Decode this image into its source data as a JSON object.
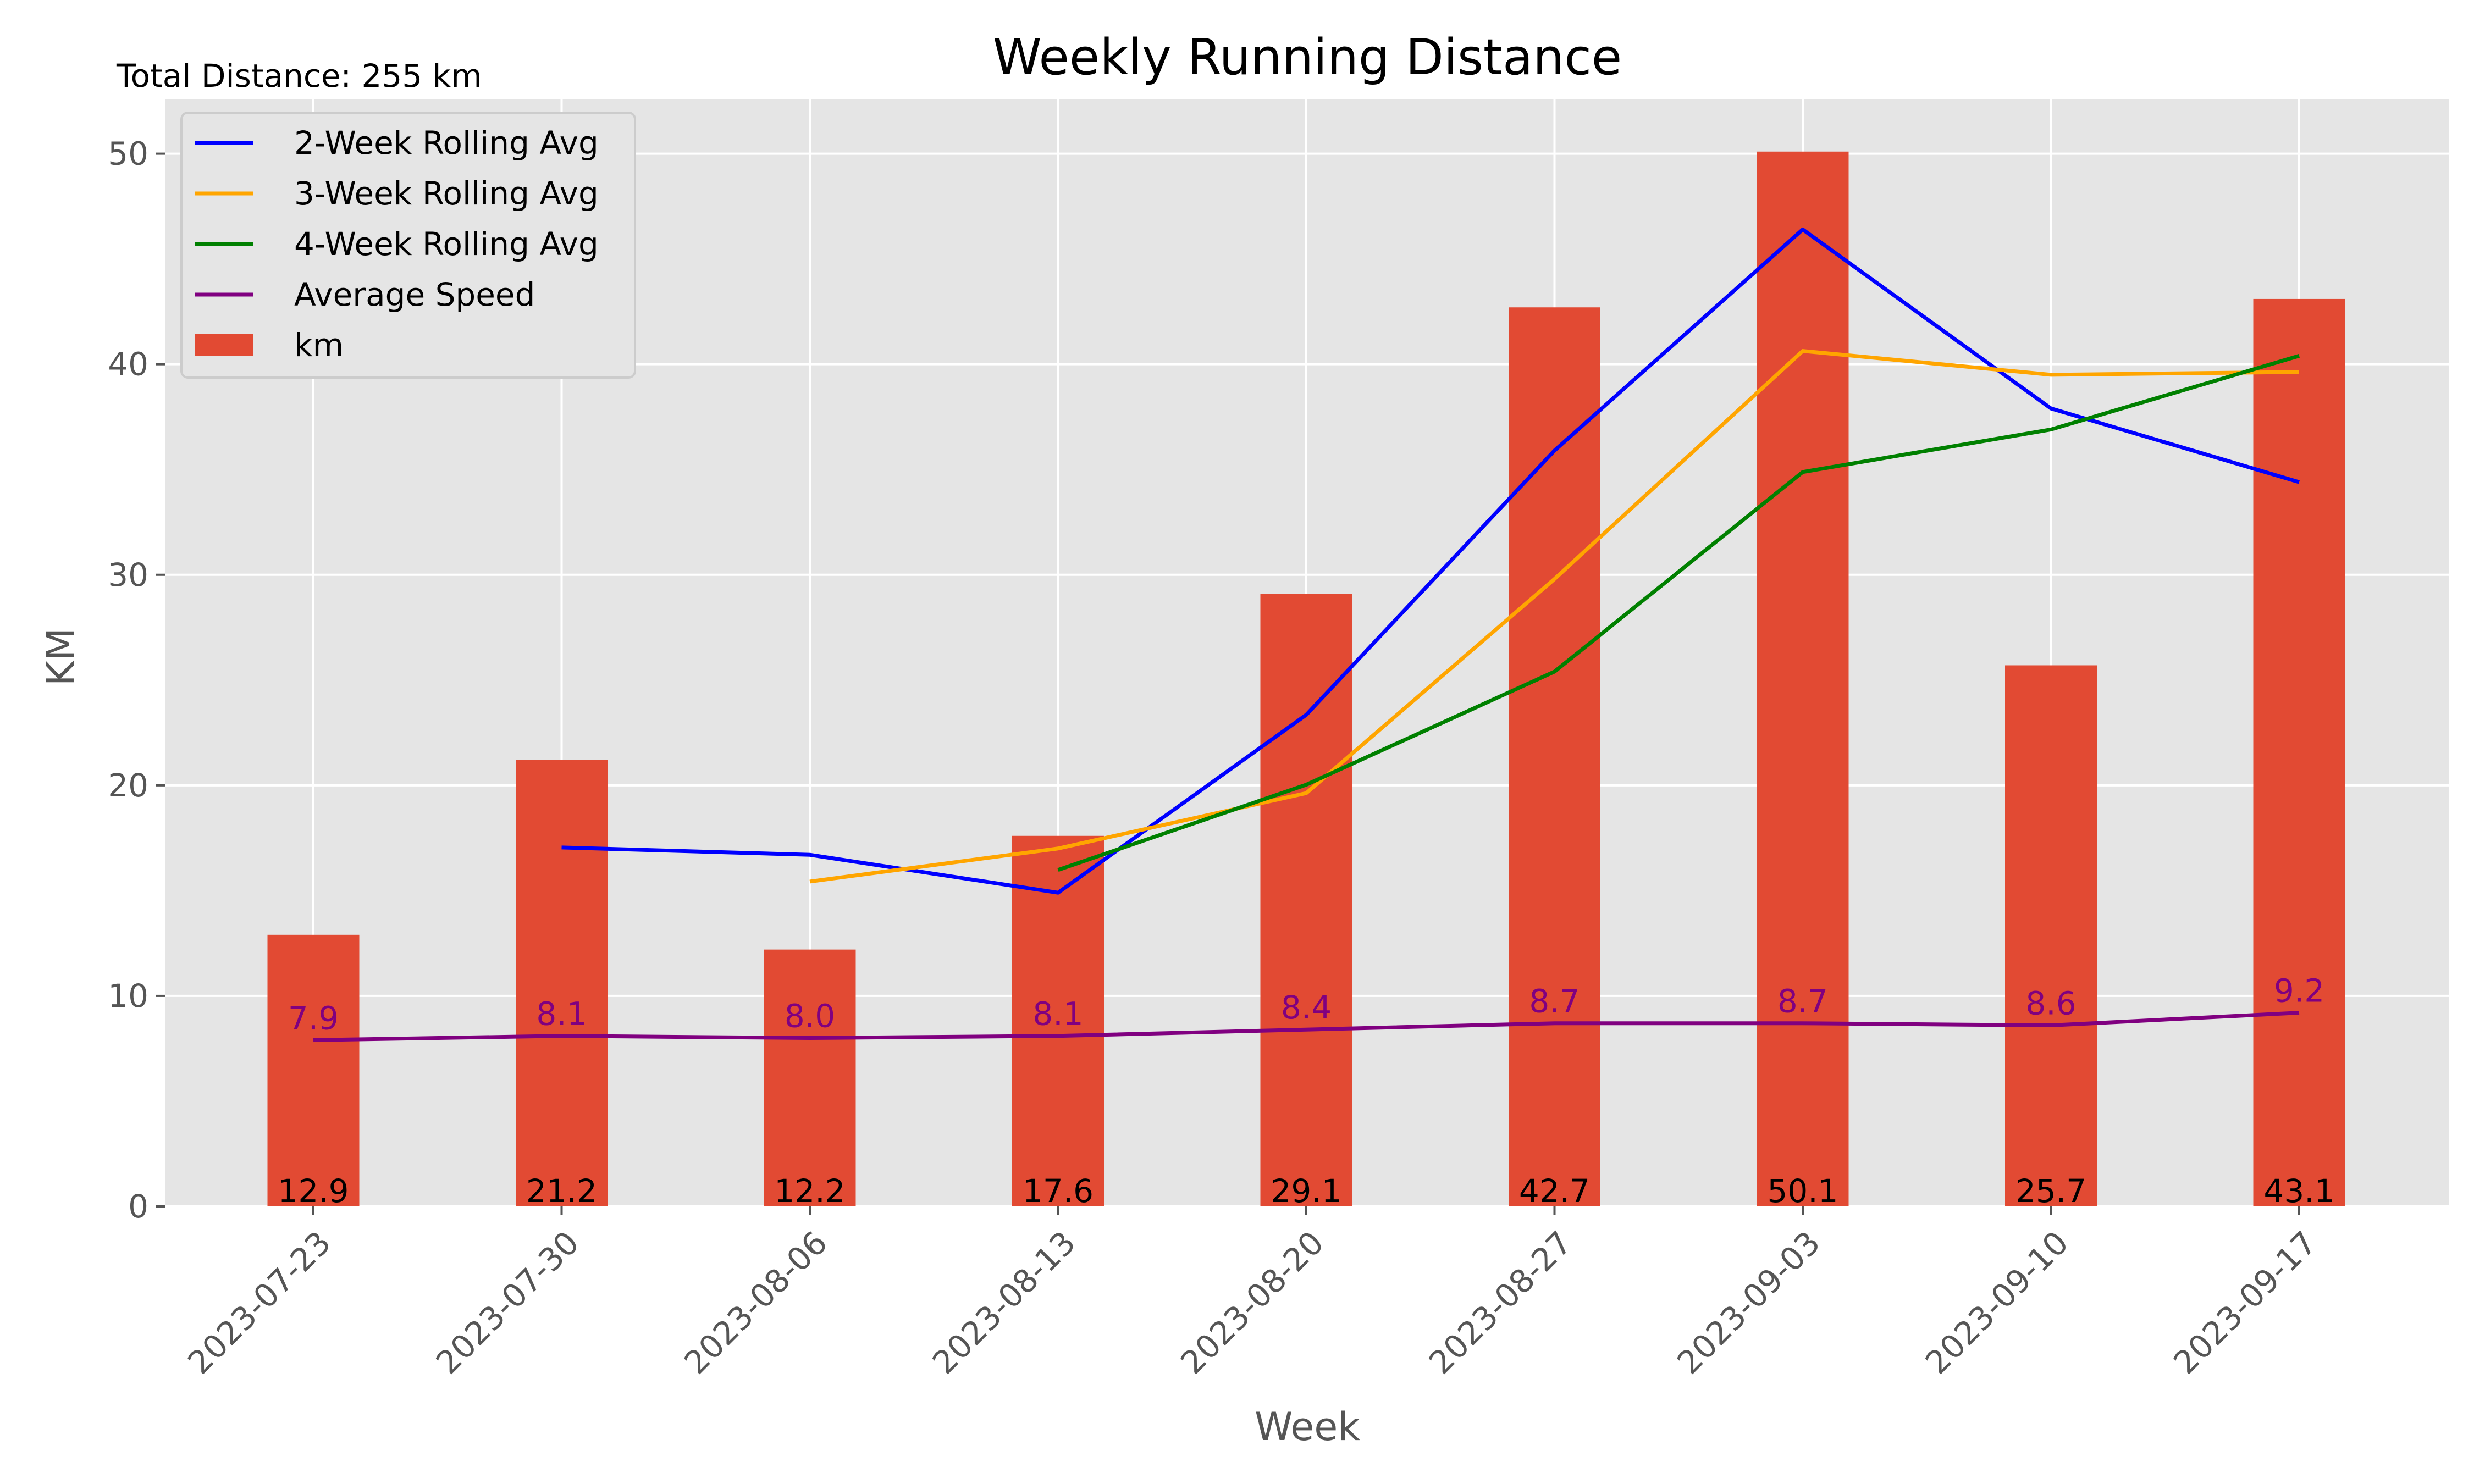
{
  "chart_data": {
    "type": "bar",
    "title": "Weekly Running Distance",
    "annotation": "Total Distance: 255 km",
    "xlabel": "Week",
    "ylabel": "KM",
    "ylim": [
      0,
      52.6
    ],
    "yticks": [
      0,
      10,
      20,
      30,
      40,
      50
    ],
    "grid": true,
    "legend_placement": "top-left",
    "categories": [
      "2023-07-23",
      "2023-07-30",
      "2023-08-06",
      "2023-08-13",
      "2023-08-20",
      "2023-08-27",
      "2023-09-03",
      "2023-09-10",
      "2023-09-17"
    ],
    "bars": {
      "name": "km",
      "color": "#e24a33",
      "values": [
        12.9,
        21.2,
        12.2,
        17.6,
        29.1,
        42.7,
        50.1,
        25.7,
        43.1
      ],
      "value_labels": [
        "12.9",
        "21.2",
        "12.2",
        "17.6",
        "29.1",
        "42.7",
        "50.1",
        "25.7",
        "43.1"
      ]
    },
    "series": [
      {
        "name": "2-Week Rolling Avg",
        "color": "#0000ff",
        "values": [
          null,
          17.05,
          16.7,
          14.9,
          23.35,
          35.9,
          46.4,
          37.9,
          34.4
        ]
      },
      {
        "name": "3-Week Rolling Avg",
        "color": "#ffa500",
        "values": [
          null,
          null,
          15.43,
          17.0,
          19.63,
          29.8,
          40.63,
          39.5,
          39.63
        ]
      },
      {
        "name": "4-Week Rolling Avg",
        "color": "#008000",
        "values": [
          null,
          null,
          null,
          15.98,
          20.03,
          25.4,
          34.88,
          36.9,
          40.4
        ]
      },
      {
        "name": "Average Speed",
        "color": "#800080",
        "values": [
          7.9,
          8.1,
          8.0,
          8.1,
          8.4,
          8.7,
          8.7,
          8.6,
          9.2
        ],
        "value_labels": [
          "7.9",
          "8.1",
          "8.0",
          "8.1",
          "8.4",
          "8.7",
          "8.7",
          "8.6",
          "9.2"
        ]
      }
    ],
    "colors": {
      "background": "#e5e5e5",
      "grid": "#ffffff",
      "text": "#555555"
    }
  }
}
